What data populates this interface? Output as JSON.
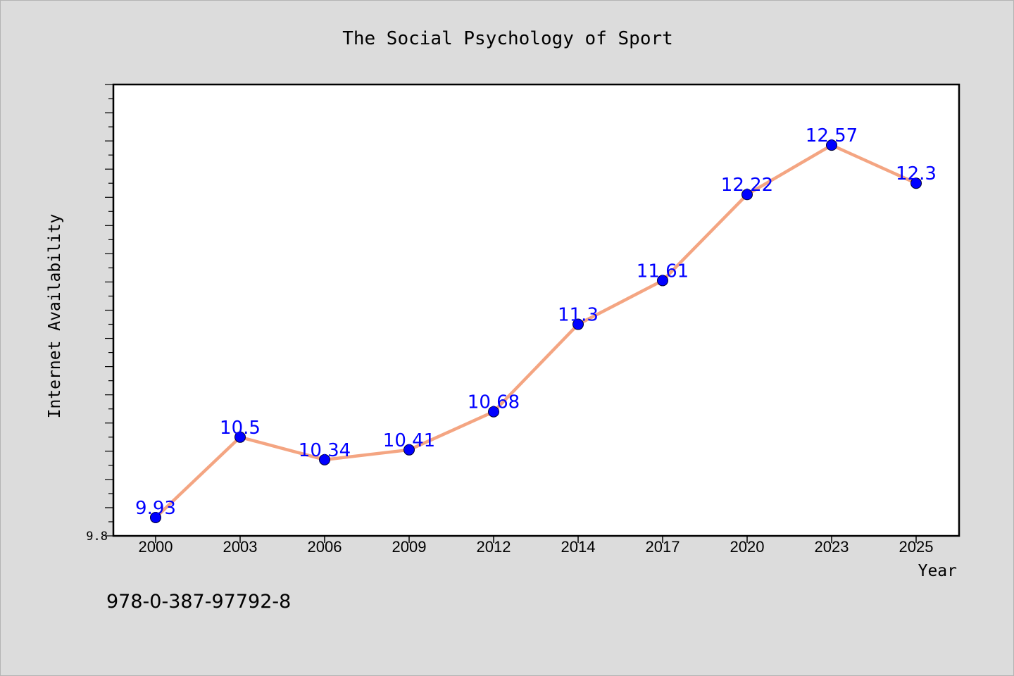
{
  "chart_data": {
    "type": "line",
    "title": "The Social Psychology of Sport",
    "xlabel": "Year",
    "ylabel": "Internet Availability",
    "categories": [
      "2000",
      "2003",
      "2006",
      "2009",
      "2012",
      "2014",
      "2017",
      "2020",
      "2023",
      "2025"
    ],
    "series": [
      {
        "values": [
          9.93,
          10.5,
          10.34,
          10.41,
          10.68,
          11.3,
          11.61,
          12.22,
          12.57,
          12.3
        ],
        "labels": [
          "9.93",
          "10.5",
          "10.34",
          "10.41",
          "10.68",
          "11.3",
          "11.61",
          "12.22",
          "12.57",
          "12.3"
        ]
      }
    ],
    "ylim": [
      9.8,
      13.0
    ],
    "y_tick_labels": [
      "9.8"
    ],
    "grid": false,
    "legend": "none",
    "colors": {
      "line": "#f4a582",
      "marker": "#0000ff",
      "data_label": "#0000ff",
      "plot_bg": "#ffffff",
      "page_bg": "#dcdcdc"
    }
  },
  "footer_code": "978-0-387-97792-8"
}
